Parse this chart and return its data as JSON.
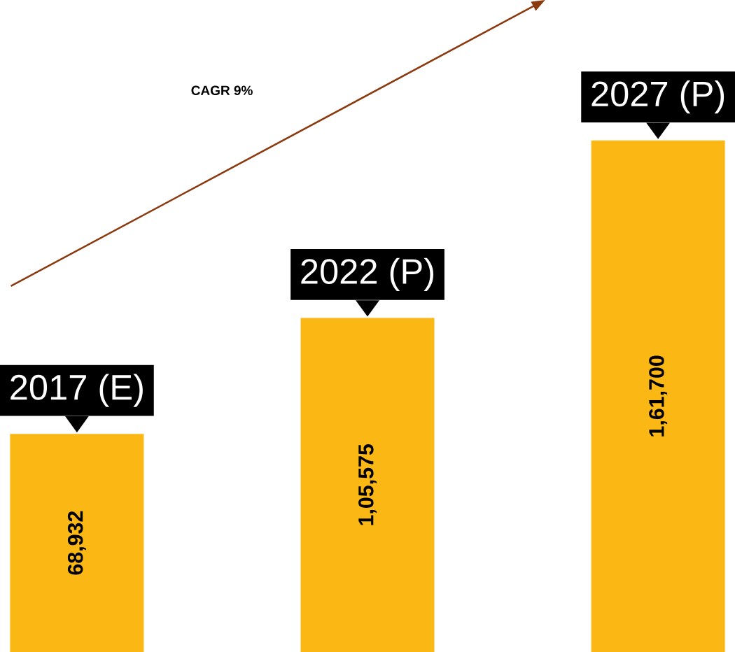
{
  "chart_data": {
    "type": "bar",
    "categories": [
      "2017 (E)",
      "2022 (P)",
      "2027 (P)"
    ],
    "values": [
      68932,
      105575,
      161700
    ],
    "value_labels": [
      "68,932",
      "1,05,575",
      "1,61,700"
    ],
    "color": "#fbb814",
    "annotations": [
      "CAGR 9%"
    ]
  }
}
